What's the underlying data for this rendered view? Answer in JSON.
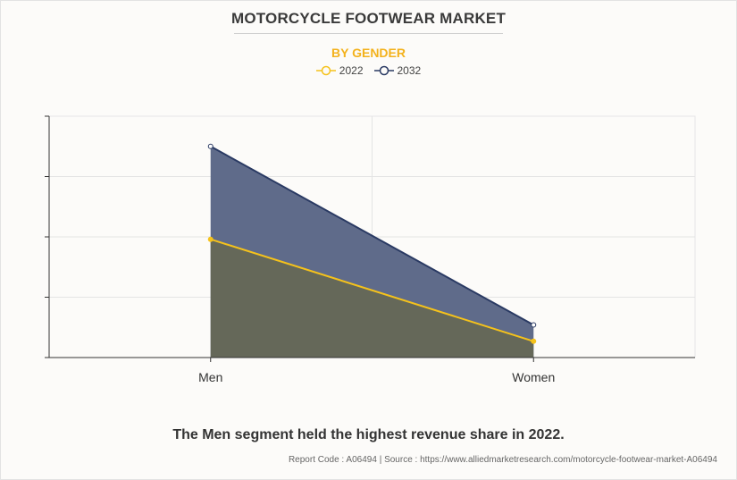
{
  "header": {
    "title": "MOTORCYCLE FOOTWEAR MARKET",
    "subtitle": "BY GENDER"
  },
  "colors": {
    "series_2022": "#f5c21b",
    "series_2032": "#2a3a63",
    "fill_2032": "#5f6b8a",
    "fill_2022": "#656859",
    "subtitle": "#f3b21d"
  },
  "chart_data": {
    "type": "area",
    "categories": [
      "Men",
      "Women"
    ],
    "series": [
      {
        "name": "2022",
        "values": [
          1.96,
          0.27
        ]
      },
      {
        "name": "2032",
        "values": [
          3.5,
          0.54
        ]
      }
    ],
    "xlabel": "",
    "ylabel": "",
    "ylim": [
      0,
      4
    ],
    "y_tick_labels_shown": false,
    "grid": true,
    "legend_position": "top-center"
  },
  "caption": "The Men segment held the highest revenue share in 2022.",
  "footer": "Report Code : A06494  |  Source : https://www.alliedmarketresearch.com/motorcycle-footwear-market-A06494"
}
